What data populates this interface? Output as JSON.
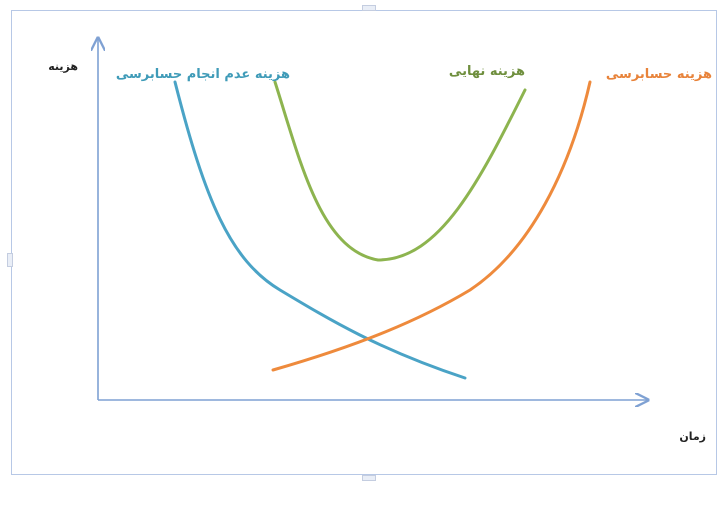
{
  "diagram": {
    "y_axis_label": "هزینه",
    "x_axis_label": "زمان",
    "curves": [
      {
        "id": "non-audit-cost",
        "label": "هزینه عدم انجام حسابرسی",
        "color": "#4aa3c6"
      },
      {
        "id": "final-cost",
        "label": "هزینه نهایی",
        "color": "#8db44f"
      },
      {
        "id": "audit-cost",
        "label": "هزینه حسابرسی",
        "color": "#ee8a3c"
      }
    ],
    "axis_color": "#7fa1d3",
    "label_colors": {
      "non-audit-cost": "#3f9bb8",
      "final-cost": "#6f8f3e",
      "audit-cost": "#e8833a"
    }
  }
}
